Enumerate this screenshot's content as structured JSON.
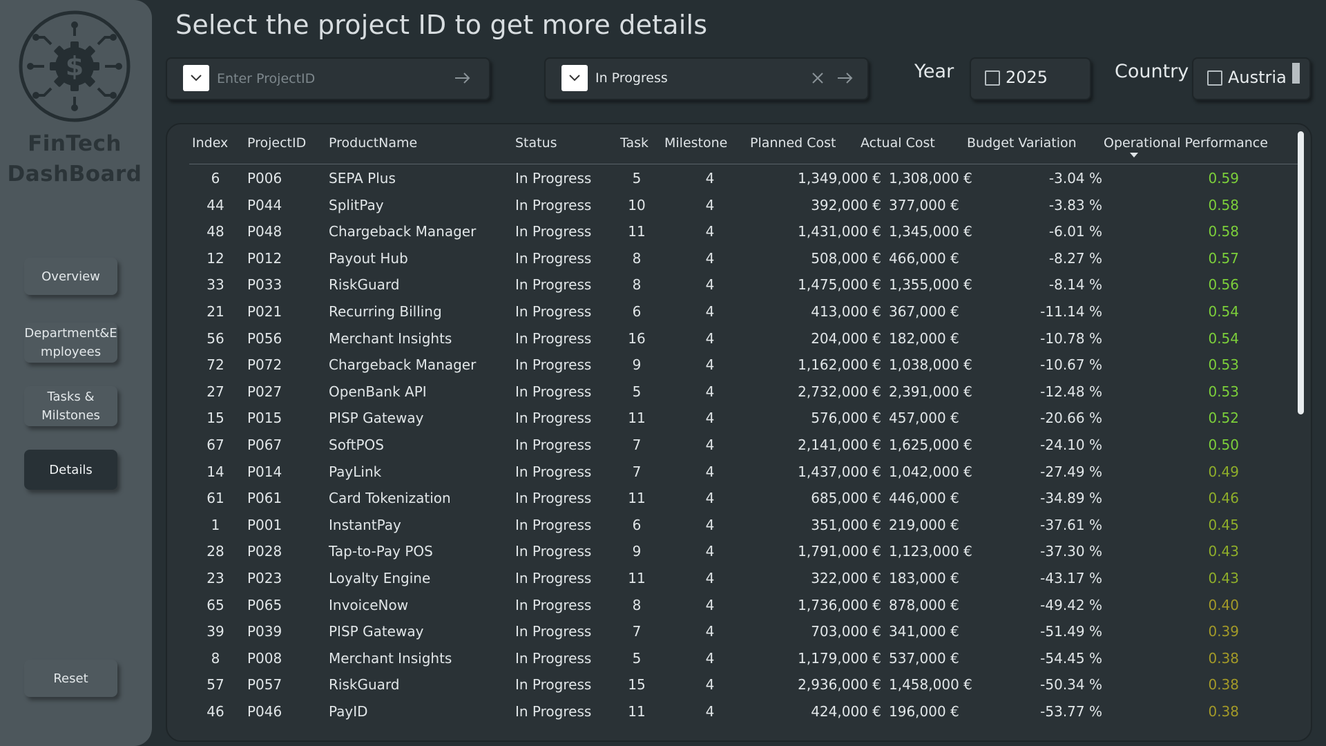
{
  "sidebar": {
    "brand_line1": "FinTech",
    "brand_line2": "DashBoard",
    "nav": {
      "overview": "Overview",
      "dept_line1": "Department&E",
      "dept_line2": "mployees",
      "tasks_line1": "Tasks &",
      "tasks_line2": "Milstones",
      "details": "Details",
      "reset": "Reset"
    }
  },
  "header": {
    "title": "Select the project ID to get more details"
  },
  "filters": {
    "project_id": {
      "placeholder": "Enter ProjectID"
    },
    "status": {
      "value": "In Progress"
    },
    "year": {
      "label": "Year",
      "value": "2025"
    },
    "country": {
      "label": "Country",
      "value": "Austria"
    }
  },
  "colors": {
    "perf_high": "#7ccf3a",
    "perf_mid": "#8fae2a",
    "perf_low": "#a39a28"
  },
  "table": {
    "columns": {
      "index": "Index",
      "project_id": "ProjectID",
      "product": "ProductName",
      "status": "Status",
      "task": "Task",
      "milestone": "Milestone",
      "planned": "Planned Cost",
      "actual": "Actual Cost",
      "variation": "Budget Variation",
      "performance": "Operational Performance"
    },
    "rows": [
      {
        "index": "6",
        "pid": "P006",
        "name": "SEPA Plus",
        "status": "In Progress",
        "task": "5",
        "mile": "4",
        "plan": "1,349,000 €",
        "act": "1,308,000 €",
        "var": "-3.04 %",
        "perf": "0.59"
      },
      {
        "index": "44",
        "pid": "P044",
        "name": "SplitPay",
        "status": "In Progress",
        "task": "10",
        "mile": "4",
        "plan": "392,000 €",
        "act": "377,000 €",
        "var": "-3.83 %",
        "perf": "0.58"
      },
      {
        "index": "48",
        "pid": "P048",
        "name": "Chargeback Manager",
        "status": "In Progress",
        "task": "11",
        "mile": "4",
        "plan": "1,431,000 €",
        "act": "1,345,000 €",
        "var": "-6.01 %",
        "perf": "0.58"
      },
      {
        "index": "12",
        "pid": "P012",
        "name": "Payout Hub",
        "status": "In Progress",
        "task": "8",
        "mile": "4",
        "plan": "508,000 €",
        "act": "466,000 €",
        "var": "-8.27 %",
        "perf": "0.57"
      },
      {
        "index": "33",
        "pid": "P033",
        "name": "RiskGuard",
        "status": "In Progress",
        "task": "8",
        "mile": "4",
        "plan": "1,475,000 €",
        "act": "1,355,000 €",
        "var": "-8.14 %",
        "perf": "0.56"
      },
      {
        "index": "21",
        "pid": "P021",
        "name": "Recurring Billing",
        "status": "In Progress",
        "task": "6",
        "mile": "4",
        "plan": "413,000 €",
        "act": "367,000 €",
        "var": "-11.14 %",
        "perf": "0.54"
      },
      {
        "index": "56",
        "pid": "P056",
        "name": "Merchant Insights",
        "status": "In Progress",
        "task": "16",
        "mile": "4",
        "plan": "204,000 €",
        "act": "182,000 €",
        "var": "-10.78 %",
        "perf": "0.54"
      },
      {
        "index": "72",
        "pid": "P072",
        "name": "Chargeback Manager",
        "status": "In Progress",
        "task": "9",
        "mile": "4",
        "plan": "1,162,000 €",
        "act": "1,038,000 €",
        "var": "-10.67 %",
        "perf": "0.53"
      },
      {
        "index": "27",
        "pid": "P027",
        "name": "OpenBank API",
        "status": "In Progress",
        "task": "5",
        "mile": "4",
        "plan": "2,732,000 €",
        "act": "2,391,000 €",
        "var": "-12.48 %",
        "perf": "0.53"
      },
      {
        "index": "15",
        "pid": "P015",
        "name": "PISP Gateway",
        "status": "In Progress",
        "task": "11",
        "mile": "4",
        "plan": "576,000 €",
        "act": "457,000 €",
        "var": "-20.66 %",
        "perf": "0.52"
      },
      {
        "index": "67",
        "pid": "P067",
        "name": "SoftPOS",
        "status": "In Progress",
        "task": "7",
        "mile": "4",
        "plan": "2,141,000 €",
        "act": "1,625,000 €",
        "var": "-24.10 %",
        "perf": "0.50"
      },
      {
        "index": "14",
        "pid": "P014",
        "name": "PayLink",
        "status": "In Progress",
        "task": "7",
        "mile": "4",
        "plan": "1,437,000 €",
        "act": "1,042,000 €",
        "var": "-27.49 %",
        "perf": "0.49"
      },
      {
        "index": "61",
        "pid": "P061",
        "name": "Card Tokenization",
        "status": "In Progress",
        "task": "11",
        "mile": "4",
        "plan": "685,000 €",
        "act": "446,000 €",
        "var": "-34.89 %",
        "perf": "0.46"
      },
      {
        "index": "1",
        "pid": "P001",
        "name": "InstantPay",
        "status": "In Progress",
        "task": "6",
        "mile": "4",
        "plan": "351,000 €",
        "act": "219,000 €",
        "var": "-37.61 %",
        "perf": "0.45"
      },
      {
        "index": "28",
        "pid": "P028",
        "name": "Tap-to-Pay POS",
        "status": "In Progress",
        "task": "9",
        "mile": "4",
        "plan": "1,791,000 €",
        "act": "1,123,000 €",
        "var": "-37.30 %",
        "perf": "0.43"
      },
      {
        "index": "23",
        "pid": "P023",
        "name": "Loyalty Engine",
        "status": "In Progress",
        "task": "11",
        "mile": "4",
        "plan": "322,000 €",
        "act": "183,000 €",
        "var": "-43.17 %",
        "perf": "0.43"
      },
      {
        "index": "65",
        "pid": "P065",
        "name": "InvoiceNow",
        "status": "In Progress",
        "task": "8",
        "mile": "4",
        "plan": "1,736,000 €",
        "act": "878,000 €",
        "var": "-49.42 %",
        "perf": "0.40"
      },
      {
        "index": "39",
        "pid": "P039",
        "name": "PISP Gateway",
        "status": "In Progress",
        "task": "7",
        "mile": "4",
        "plan": "703,000 €",
        "act": "341,000 €",
        "var": "-51.49 %",
        "perf": "0.39"
      },
      {
        "index": "8",
        "pid": "P008",
        "name": "Merchant Insights",
        "status": "In Progress",
        "task": "5",
        "mile": "4",
        "plan": "1,179,000 €",
        "act": "537,000 €",
        "var": "-54.45 %",
        "perf": "0.38"
      },
      {
        "index": "57",
        "pid": "P057",
        "name": "RiskGuard",
        "status": "In Progress",
        "task": "15",
        "mile": "4",
        "plan": "2,936,000 €",
        "act": "1,458,000 €",
        "var": "-50.34 %",
        "perf": "0.38"
      },
      {
        "index": "46",
        "pid": "P046",
        "name": "PayID",
        "status": "In Progress",
        "task": "11",
        "mile": "4",
        "plan": "424,000 €",
        "act": "196,000 €",
        "var": "-53.77 %",
        "perf": "0.38"
      }
    ]
  }
}
